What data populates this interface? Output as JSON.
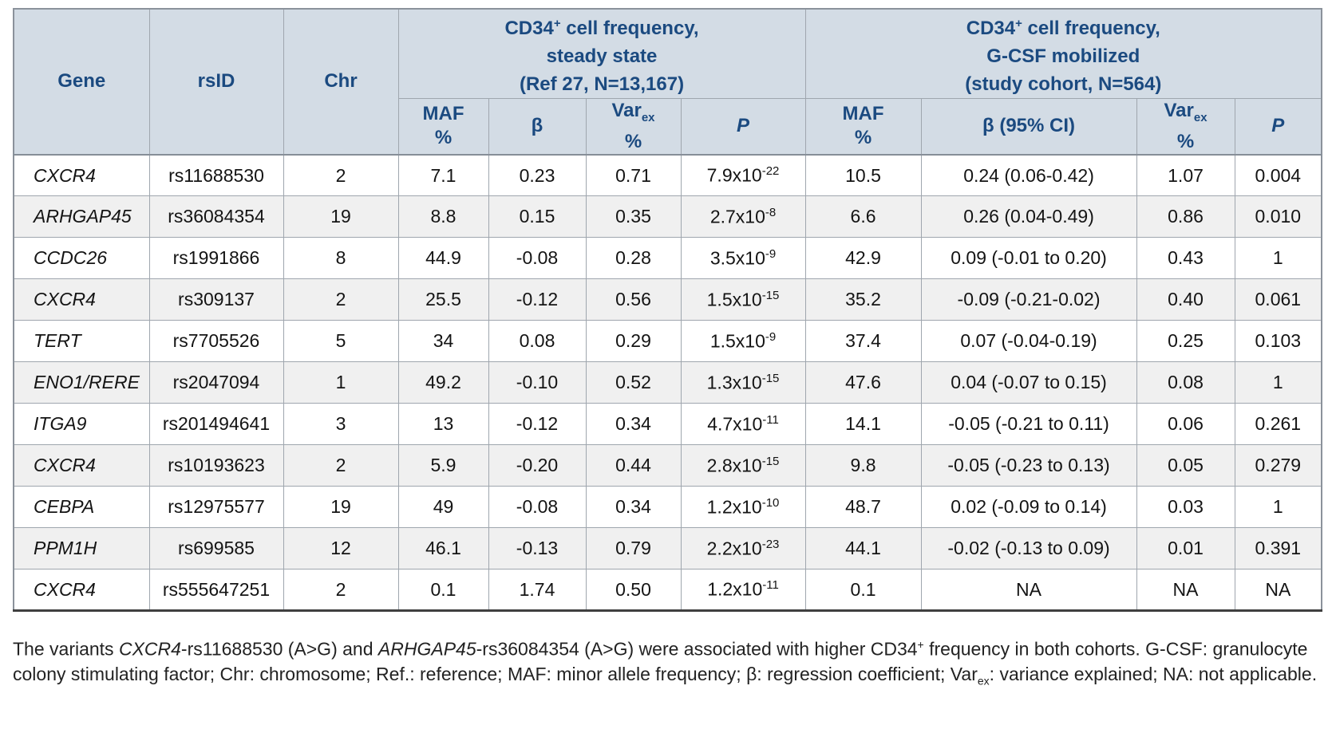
{
  "colors": {
    "header_bg": "#d3dce5",
    "header_text": "#1b4a80",
    "row_alt_bg": "#f0f0f0",
    "border_gray": "#9fa6ae",
    "bottom_rule": "#3f3f3f"
  },
  "header": {
    "gene": "Gene",
    "rsid": "rsID",
    "chr": "Chr",
    "group1": {
      "l1a": "CD34",
      "l1sup": "+",
      "l1b": " cell frequency,",
      "l2": "steady state",
      "l3": "(Ref 27, N=13,167)"
    },
    "group2": {
      "l1a": "CD34",
      "l1sup": "+",
      "l1b": " cell frequency,",
      "l2": "G-CSF mobilized",
      "l3": "(study cohort, N=564)"
    },
    "sub": {
      "maf_l1": "MAF",
      "maf_l2": "%",
      "beta": "β",
      "var_l1": "Var",
      "var_sub": "ex",
      "var_l2": "%",
      "p": "P",
      "beta_ci": "β (95% CI)"
    }
  },
  "rows": [
    {
      "gene": "CXCR4",
      "rsid": "rs11688530",
      "chr": "2",
      "ss_maf": "7.1",
      "ss_beta": "0.23",
      "ss_var": "0.71",
      "ss_p_base": "7.9x10",
      "ss_p_exp": "-22",
      "g_maf": "10.5",
      "g_beta": "0.24 (0.06-0.42)",
      "g_var": "1.07",
      "g_p": "0.004"
    },
    {
      "gene": "ARHGAP45",
      "rsid": "rs36084354",
      "chr": "19",
      "ss_maf": "8.8",
      "ss_beta": "0.15",
      "ss_var": "0.35",
      "ss_p_base": "2.7x10",
      "ss_p_exp": "-8",
      "g_maf": "6.6",
      "g_beta": "0.26 (0.04-0.49)",
      "g_var": "0.86",
      "g_p": "0.010"
    },
    {
      "gene": "CCDC26",
      "rsid": "rs1991866",
      "chr": "8",
      "ss_maf": "44.9",
      "ss_beta": "-0.08",
      "ss_var": "0.28",
      "ss_p_base": "3.5x10",
      "ss_p_exp": "-9",
      "g_maf": "42.9",
      "g_beta": "0.09 (-0.01 to 0.20)",
      "g_var": "0.43",
      "g_p": "1"
    },
    {
      "gene": "CXCR4",
      "rsid": "rs309137",
      "chr": "2",
      "ss_maf": "25.5",
      "ss_beta": "-0.12",
      "ss_var": "0.56",
      "ss_p_base": "1.5x10",
      "ss_p_exp": "-15",
      "g_maf": "35.2",
      "g_beta": "-0.09 (-0.21-0.02)",
      "g_var": "0.40",
      "g_p": "0.061"
    },
    {
      "gene": "TERT",
      "rsid": "rs7705526",
      "chr": "5",
      "ss_maf": "34",
      "ss_beta": "0.08",
      "ss_var": "0.29",
      "ss_p_base": "1.5x10",
      "ss_p_exp": "-9",
      "g_maf": "37.4",
      "g_beta": "0.07 (-0.04-0.19)",
      "g_var": "0.25",
      "g_p": "0.103"
    },
    {
      "gene": "ENO1/RERE",
      "rsid": "rs2047094",
      "chr": "1",
      "ss_maf": "49.2",
      "ss_beta": "-0.10",
      "ss_var": "0.52",
      "ss_p_base": "1.3x10",
      "ss_p_exp": "-15",
      "g_maf": "47.6",
      "g_beta": "0.04 (-0.07 to 0.15)",
      "g_var": "0.08",
      "g_p": "1"
    },
    {
      "gene": "ITGA9",
      "rsid": "rs201494641",
      "chr": "3",
      "ss_maf": "13",
      "ss_beta": "-0.12",
      "ss_var": "0.34",
      "ss_p_base": "4.7x10",
      "ss_p_exp": "-11",
      "g_maf": "14.1",
      "g_beta": "-0.05 (-0.21 to 0.11)",
      "g_var": "0.06",
      "g_p": "0.261"
    },
    {
      "gene": "CXCR4",
      "rsid": "rs10193623",
      "chr": "2",
      "ss_maf": "5.9",
      "ss_beta": "-0.20",
      "ss_var": "0.44",
      "ss_p_base": "2.8x10",
      "ss_p_exp": "-15",
      "g_maf": "9.8",
      "g_beta": "-0.05 (-0.23 to 0.13)",
      "g_var": "0.05",
      "g_p": "0.279"
    },
    {
      "gene": "CEBPA",
      "rsid": "rs12975577",
      "chr": "19",
      "ss_maf": "49",
      "ss_beta": "-0.08",
      "ss_var": "0.34",
      "ss_p_base": "1.2x10",
      "ss_p_exp": "-10",
      "g_maf": "48.7",
      "g_beta": "0.02 (-0.09 to 0.14)",
      "g_var": "0.03",
      "g_p": "1"
    },
    {
      "gene": "PPM1H",
      "rsid": "rs699585",
      "chr": "12",
      "ss_maf": "46.1",
      "ss_beta": "-0.13",
      "ss_var": "0.79",
      "ss_p_base": "2.2x10",
      "ss_p_exp": "-23",
      "g_maf": "44.1",
      "g_beta": "-0.02 (-0.13 to 0.09)",
      "g_var": "0.01",
      "g_p": "0.391"
    },
    {
      "gene": "CXCR4",
      "rsid": "rs555647251",
      "chr": "2",
      "ss_maf": "0.1",
      "ss_beta": "1.74",
      "ss_var": "0.50",
      "ss_p_base": "1.2x10",
      "ss_p_exp": "-11",
      "g_maf": "0.1",
      "g_beta": "NA",
      "g_var": "NA",
      "g_p": "NA"
    }
  ],
  "footnote": {
    "parts": [
      {
        "text": "The variants "
      },
      {
        "text": "CXCR4",
        "style": "i"
      },
      {
        "text": "-rs11688530 (A>G) and "
      },
      {
        "text": "ARHGAP45",
        "style": "i"
      },
      {
        "text": "-rs36084354 (A>G) were associated with higher CD34"
      },
      {
        "text": "+",
        "style": "sup"
      },
      {
        "text": " frequency in both cohorts. G-CSF: granulocyte colony stimulating factor; Chr: chromosome; Ref.: reference; MAF: minor allele frequency; β: regression coefficient; Var"
      },
      {
        "text": "ex",
        "style": "sub"
      },
      {
        "text": ": variance explained; NA: not applicable."
      }
    ]
  }
}
